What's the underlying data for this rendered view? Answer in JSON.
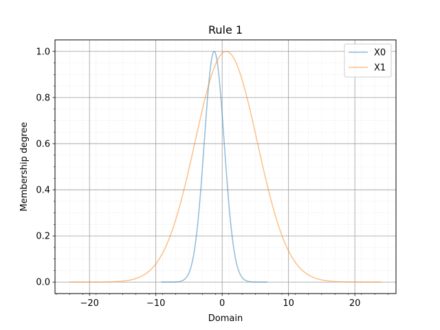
{
  "chart_data": {
    "type": "line",
    "title": "Rule 1",
    "xlabel": "Domain",
    "ylabel": "Membership degree",
    "xlim": [
      -25.2,
      26.2
    ],
    "ylim": [
      -0.05,
      1.05
    ],
    "xticks": [
      -20,
      -10,
      0,
      10,
      20
    ],
    "xtick_labels": [
      "−20",
      "−10",
      "0",
      "10",
      "20"
    ],
    "yticks": [
      0.0,
      0.2,
      0.4,
      0.6,
      0.8,
      1.0
    ],
    "ytick_labels": [
      "0.0",
      "0.2",
      "0.4",
      "0.6",
      "0.8",
      "1.0"
    ],
    "grid": true,
    "minor_grid": true,
    "legend_position": "top-right",
    "series": [
      {
        "name": "X0",
        "color": "#1f77b4",
        "shape": "gaussian",
        "mean": -1.2,
        "sigma": 1.5,
        "x_range": [
          -9.2,
          6.8
        ]
      },
      {
        "name": "X1",
        "color": "#ff7f0e",
        "shape": "gaussian",
        "mean": 0.6,
        "sigma": 4.7,
        "x_range": [
          -23.0,
          24.0
        ]
      }
    ]
  }
}
